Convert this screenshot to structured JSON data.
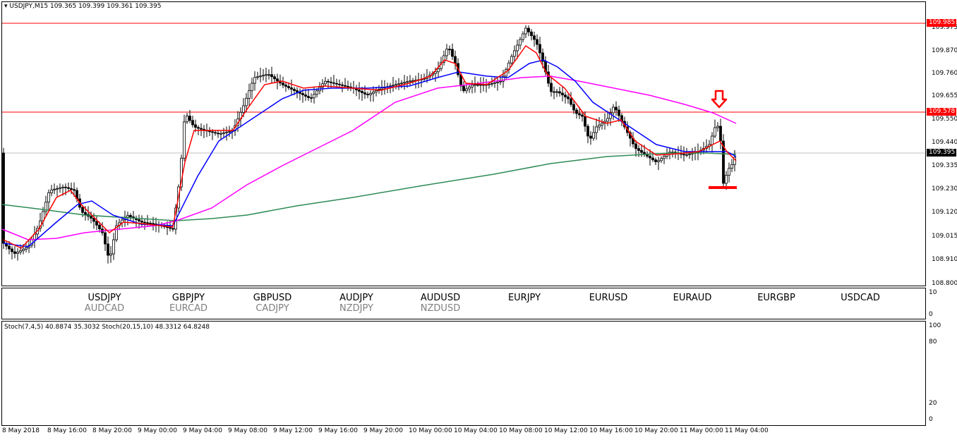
{
  "main_chart": {
    "title_symbol": "USDJPY,M15",
    "title_values": "109.365 109.399 109.361 109.395",
    "price_axis": [
      "109.975",
      "109.870",
      "109.760",
      "109.655",
      "109.550",
      "109.440",
      "109.335",
      "109.230",
      "109.120",
      "109.015",
      "108.910",
      "108.800"
    ],
    "price_tags": [
      {
        "value": "109.985",
        "bg": "#ff0000",
        "color": "#ffffff"
      },
      {
        "value": "109.578",
        "bg": "#ff0000",
        "color": "#ffffff"
      },
      {
        "value": "109.395",
        "bg": "#000000",
        "color": "#ffffff"
      }
    ],
    "colors": {
      "resistance": "#ff0000",
      "ma_fast": "#ff0000",
      "ma_mid": "#0000ff",
      "ma_slow": "#ff00ff",
      "ma_long": "#2e8b57",
      "annotation": "#ff0000",
      "candle": "#000000"
    }
  },
  "symbol_panel": {
    "pairs": [
      {
        "primary": "USDJPY",
        "secondary": "AUDCAD"
      },
      {
        "primary": "GBPJPY",
        "secondary": "EURCAD"
      },
      {
        "primary": "GBPUSD",
        "secondary": "CADJPY"
      },
      {
        "primary": "AUDJPY",
        "secondary": "NZDJPY"
      },
      {
        "primary": "AUDUSD",
        "secondary": "NZDUSD"
      },
      {
        "primary": "EURJPY",
        "secondary": ""
      },
      {
        "primary": "EURUSD",
        "secondary": ""
      },
      {
        "primary": "EURAUD",
        "secondary": ""
      },
      {
        "primary": "EURGBP",
        "secondary": ""
      },
      {
        "primary": "USDCAD",
        "secondary": ""
      }
    ],
    "axis": [
      "10",
      "0"
    ]
  },
  "stochastic": {
    "title": "Stoch(7,4,5) 40.8874 35.3032  Stoch(20,15,10) 48.3312 64.8248",
    "axis": [
      "100",
      "80",
      "20",
      "0"
    ],
    "colors": {
      "fast": "#0000ff",
      "slow": "#ff0000"
    }
  },
  "time_axis": [
    "8 May 2018",
    "8 May 16:00",
    "8 May 20:00",
    "9 May 00:00",
    "9 May 04:00",
    "9 May 08:00",
    "9 May 12:00",
    "9 May 16:00",
    "9 May 20:00",
    "10 May 00:00",
    "10 May 04:00",
    "10 May 08:00",
    "10 May 12:00",
    "10 May 16:00",
    "10 May 20:00",
    "11 May 00:00",
    "11 May 04:00"
  ]
}
